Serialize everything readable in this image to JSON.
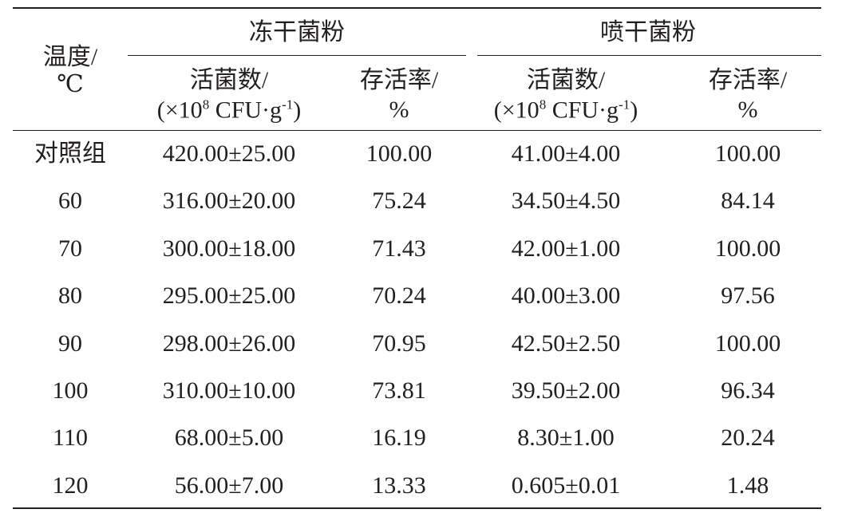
{
  "table": {
    "header": {
      "temperature": [
        "温度/",
        "℃"
      ],
      "groups": [
        "冻干菌粉",
        "喷干菌粉"
      ],
      "columns": [
        {
          "line1": "活菌数/",
          "line2": [
            "(×10",
            "8",
            " CFU·g",
            "-1",
            ")"
          ]
        },
        {
          "line1": "存活率/",
          "line2": "%"
        },
        {
          "line1": "活菌数/",
          "line2": [
            "(×10",
            "8",
            " CFU·g",
            "-1",
            ")"
          ]
        },
        {
          "line1": "存活率/",
          "line2": "%"
        }
      ]
    },
    "rows": [
      [
        "对照组",
        "420.00±25.00",
        "100.00",
        "41.00±4.00",
        "100.00"
      ],
      [
        "60",
        "316.00±20.00",
        "75.24",
        "34.50±4.50",
        "84.14"
      ],
      [
        "70",
        "300.00±18.00",
        "71.43",
        "42.00±1.00",
        "100.00"
      ],
      [
        "80",
        "295.00±25.00",
        "70.24",
        "40.00±3.00",
        "97.56"
      ],
      [
        "90",
        "298.00±26.00",
        "70.95",
        "42.50±2.50",
        "100.00"
      ],
      [
        "100",
        "310.00±10.00",
        "73.81",
        "39.50±2.00",
        "96.34"
      ],
      [
        "110",
        "68.00±5.00",
        "16.19",
        "8.30±1.00",
        "20.24"
      ],
      [
        "120",
        "56.00±7.00",
        "13.33",
        "0.605±0.01",
        "1.48"
      ]
    ]
  }
}
